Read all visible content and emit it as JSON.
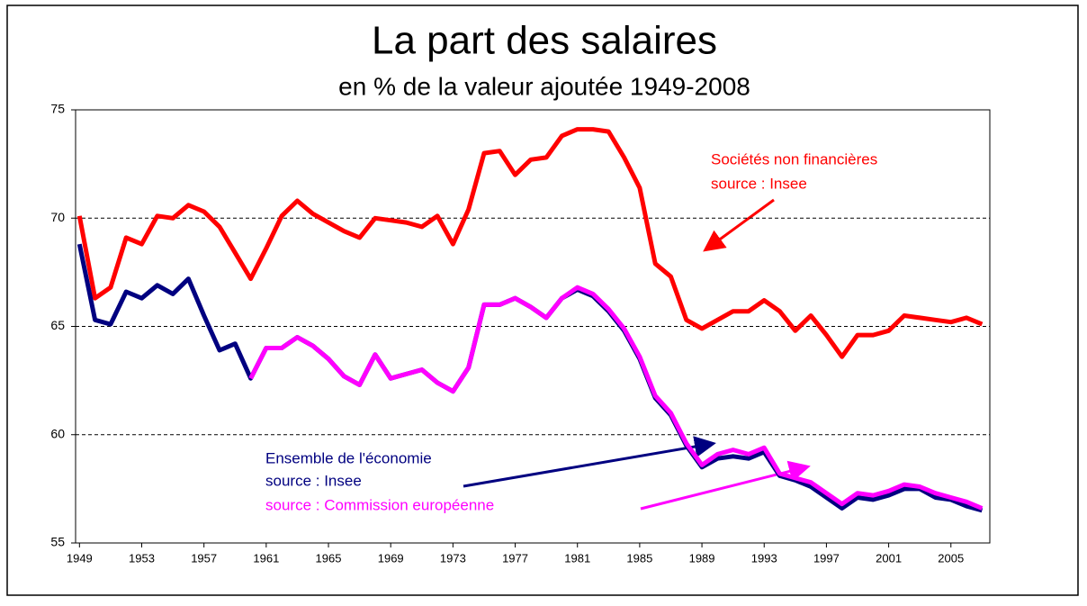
{
  "chart_data": {
    "type": "line",
    "title": "La part des salaires",
    "subtitle": "en % de la valeur ajoutée 1949-2008",
    "annotations": [
      "Sociétés non financières",
      "source : Insee",
      "Ensemble de l'économie",
      "source : Insee",
      "source : Commission européenne"
    ],
    "x": [
      1949,
      1950,
      1951,
      1952,
      1953,
      1954,
      1955,
      1956,
      1957,
      1958,
      1959,
      1960,
      1961,
      1962,
      1963,
      1964,
      1965,
      1966,
      1967,
      1968,
      1969,
      1970,
      1971,
      1972,
      1973,
      1974,
      1975,
      1976,
      1977,
      1978,
      1979,
      1980,
      1981,
      1982,
      1983,
      1984,
      1985,
      1986,
      1987,
      1988,
      1989,
      1990,
      1991,
      1992,
      1993,
      1994,
      1995,
      1996,
      1997,
      1998,
      1999,
      2000,
      2001,
      2002,
      2003,
      2004,
      2005,
      2006,
      2007
    ],
    "series": [
      {
        "name": "Sociétés non financières",
        "color": "#ff0000",
        "values": [
          70.1,
          66.3,
          66.8,
          69.1,
          68.8,
          70.1,
          70.0,
          70.6,
          70.3,
          69.6,
          68.4,
          67.2,
          68.6,
          70.1,
          70.8,
          70.2,
          69.8,
          69.4,
          69.1,
          70.0,
          69.9,
          69.8,
          69.6,
          70.1,
          68.8,
          70.4,
          73.0,
          73.1,
          72.0,
          72.7,
          72.8,
          73.8,
          74.1,
          74.1,
          74.0,
          72.8,
          71.4,
          67.9,
          67.3,
          65.3,
          64.9,
          65.3,
          65.7,
          65.7,
          66.2,
          65.7,
          64.8,
          65.5,
          64.6,
          63.6,
          64.6,
          64.6,
          64.8,
          65.5,
          65.4,
          65.3,
          65.2,
          65.4,
          65.1
        ]
      },
      {
        "name": "Ensemble de l'économie",
        "color": "#000080",
        "values": [
          68.8,
          65.3,
          65.1,
          66.6,
          66.3,
          66.9,
          66.5,
          67.2,
          65.5,
          63.9,
          64.2,
          62.6,
          64.0,
          64.0,
          64.5,
          64.1,
          63.5,
          62.7,
          62.3,
          63.7,
          62.6,
          62.8,
          63.0,
          62.4,
          62.0,
          63.1,
          66.0,
          66.0,
          66.3,
          65.9,
          65.4,
          66.3,
          66.7,
          66.4,
          65.7,
          64.8,
          63.5,
          61.7,
          60.9,
          59.5,
          58.5,
          58.9,
          59.0,
          58.9,
          59.2,
          58.1,
          57.9,
          57.6,
          57.1,
          56.6,
          57.1,
          57.0,
          57.2,
          57.5,
          57.5,
          57.1,
          57.0,
          56.7,
          56.5
        ]
      },
      {
        "name": "Commission européenne",
        "color": "#ff00ff",
        "values": [
          null,
          null,
          null,
          null,
          null,
          null,
          null,
          null,
          null,
          null,
          null,
          62.6,
          64.0,
          64.0,
          64.5,
          64.1,
          63.5,
          62.7,
          62.3,
          63.7,
          62.6,
          62.8,
          63.0,
          62.4,
          62.0,
          63.1,
          66.0,
          66.0,
          66.3,
          65.9,
          65.4,
          66.3,
          66.8,
          66.5,
          65.8,
          64.9,
          63.6,
          61.8,
          61.0,
          59.6,
          58.6,
          59.1,
          59.3,
          59.1,
          59.4,
          58.2,
          58.0,
          57.8,
          57.3,
          56.8,
          57.3,
          57.2,
          57.4,
          57.7,
          57.6,
          57.3,
          57.1,
          56.9,
          56.6
        ]
      }
    ],
    "xlim": [
      1948.75,
      2007.5
    ],
    "xticks": [
      1949,
      1953,
      1957,
      1961,
      1965,
      1969,
      1973,
      1977,
      1981,
      1985,
      1989,
      1993,
      1997,
      2001,
      2005
    ],
    "ylim": [
      55,
      75
    ],
    "yticks": [
      55,
      60,
      65,
      70,
      75
    ],
    "grid": true
  }
}
